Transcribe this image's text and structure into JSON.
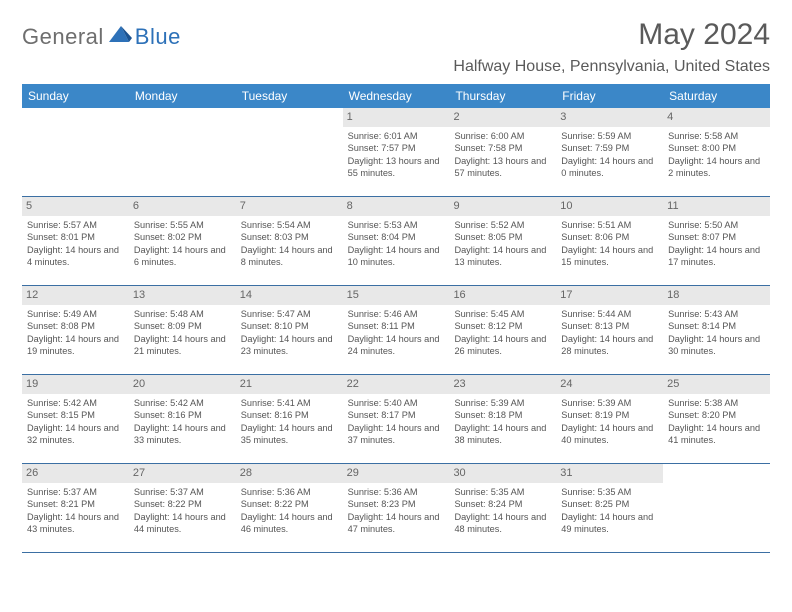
{
  "logo": {
    "text1": "General",
    "text2": "Blue"
  },
  "title": "May 2024",
  "location": "Halfway House, Pennsylvania, United States",
  "colors": {
    "header_bg": "#3b87c8",
    "header_text": "#ffffff",
    "row_border": "#3b6fa3",
    "daynum_bg": "#e8e8e8",
    "logo_accent": "#2d71b8"
  },
  "dayNames": [
    "Sunday",
    "Monday",
    "Tuesday",
    "Wednesday",
    "Thursday",
    "Friday",
    "Saturday"
  ],
  "weeks": [
    [
      {
        "empty": true
      },
      {
        "empty": true
      },
      {
        "empty": true
      },
      {
        "n": "1",
        "sr": "6:01 AM",
        "ss": "7:57 PM",
        "dl": "13 hours and 55 minutes."
      },
      {
        "n": "2",
        "sr": "6:00 AM",
        "ss": "7:58 PM",
        "dl": "13 hours and 57 minutes."
      },
      {
        "n": "3",
        "sr": "5:59 AM",
        "ss": "7:59 PM",
        "dl": "14 hours and 0 minutes."
      },
      {
        "n": "4",
        "sr": "5:58 AM",
        "ss": "8:00 PM",
        "dl": "14 hours and 2 minutes."
      }
    ],
    [
      {
        "n": "5",
        "sr": "5:57 AM",
        "ss": "8:01 PM",
        "dl": "14 hours and 4 minutes."
      },
      {
        "n": "6",
        "sr": "5:55 AM",
        "ss": "8:02 PM",
        "dl": "14 hours and 6 minutes."
      },
      {
        "n": "7",
        "sr": "5:54 AM",
        "ss": "8:03 PM",
        "dl": "14 hours and 8 minutes."
      },
      {
        "n": "8",
        "sr": "5:53 AM",
        "ss": "8:04 PM",
        "dl": "14 hours and 10 minutes."
      },
      {
        "n": "9",
        "sr": "5:52 AM",
        "ss": "8:05 PM",
        "dl": "14 hours and 13 minutes."
      },
      {
        "n": "10",
        "sr": "5:51 AM",
        "ss": "8:06 PM",
        "dl": "14 hours and 15 minutes."
      },
      {
        "n": "11",
        "sr": "5:50 AM",
        "ss": "8:07 PM",
        "dl": "14 hours and 17 minutes."
      }
    ],
    [
      {
        "n": "12",
        "sr": "5:49 AM",
        "ss": "8:08 PM",
        "dl": "14 hours and 19 minutes."
      },
      {
        "n": "13",
        "sr": "5:48 AM",
        "ss": "8:09 PM",
        "dl": "14 hours and 21 minutes."
      },
      {
        "n": "14",
        "sr": "5:47 AM",
        "ss": "8:10 PM",
        "dl": "14 hours and 23 minutes."
      },
      {
        "n": "15",
        "sr": "5:46 AM",
        "ss": "8:11 PM",
        "dl": "14 hours and 24 minutes."
      },
      {
        "n": "16",
        "sr": "5:45 AM",
        "ss": "8:12 PM",
        "dl": "14 hours and 26 minutes."
      },
      {
        "n": "17",
        "sr": "5:44 AM",
        "ss": "8:13 PM",
        "dl": "14 hours and 28 minutes."
      },
      {
        "n": "18",
        "sr": "5:43 AM",
        "ss": "8:14 PM",
        "dl": "14 hours and 30 minutes."
      }
    ],
    [
      {
        "n": "19",
        "sr": "5:42 AM",
        "ss": "8:15 PM",
        "dl": "14 hours and 32 minutes."
      },
      {
        "n": "20",
        "sr": "5:42 AM",
        "ss": "8:16 PM",
        "dl": "14 hours and 33 minutes."
      },
      {
        "n": "21",
        "sr": "5:41 AM",
        "ss": "8:16 PM",
        "dl": "14 hours and 35 minutes."
      },
      {
        "n": "22",
        "sr": "5:40 AM",
        "ss": "8:17 PM",
        "dl": "14 hours and 37 minutes."
      },
      {
        "n": "23",
        "sr": "5:39 AM",
        "ss": "8:18 PM",
        "dl": "14 hours and 38 minutes."
      },
      {
        "n": "24",
        "sr": "5:39 AM",
        "ss": "8:19 PM",
        "dl": "14 hours and 40 minutes."
      },
      {
        "n": "25",
        "sr": "5:38 AM",
        "ss": "8:20 PM",
        "dl": "14 hours and 41 minutes."
      }
    ],
    [
      {
        "n": "26",
        "sr": "5:37 AM",
        "ss": "8:21 PM",
        "dl": "14 hours and 43 minutes."
      },
      {
        "n": "27",
        "sr": "5:37 AM",
        "ss": "8:22 PM",
        "dl": "14 hours and 44 minutes."
      },
      {
        "n": "28",
        "sr": "5:36 AM",
        "ss": "8:22 PM",
        "dl": "14 hours and 46 minutes."
      },
      {
        "n": "29",
        "sr": "5:36 AM",
        "ss": "8:23 PM",
        "dl": "14 hours and 47 minutes."
      },
      {
        "n": "30",
        "sr": "5:35 AM",
        "ss": "8:24 PM",
        "dl": "14 hours and 48 minutes."
      },
      {
        "n": "31",
        "sr": "5:35 AM",
        "ss": "8:25 PM",
        "dl": "14 hours and 49 minutes."
      },
      {
        "empty": true
      }
    ]
  ],
  "labels": {
    "sunrise": "Sunrise: ",
    "sunset": "Sunset: ",
    "daylight": "Daylight: "
  }
}
